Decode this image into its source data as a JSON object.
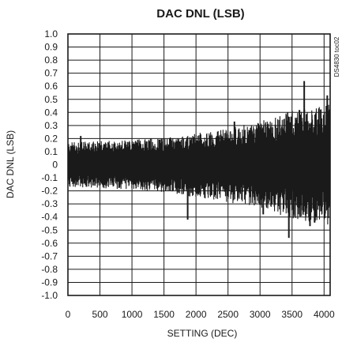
{
  "chart_data": {
    "type": "line",
    "title": "DAC DNL (LSB)",
    "xlabel": "SETTING (DEC)",
    "ylabel": "DAC DNL (LSB)",
    "watermark": "DS4830 toc02",
    "xlim": [
      0,
      4095
    ],
    "ylim": [
      -1.0,
      1.0
    ],
    "x_ticks": [
      0,
      500,
      1000,
      1500,
      2000,
      2500,
      3000,
      3500,
      4000
    ],
    "x_tick_labels": [
      "0",
      "500",
      "1000",
      "1500",
      "2000",
      "2500",
      "3000",
      "3500",
      "4000"
    ],
    "y_ticks": [
      1.0,
      0.9,
      0.8,
      0.7,
      0.6,
      0.5,
      0.4,
      0.3,
      0.2,
      0.1,
      0,
      -0.1,
      -0.2,
      -0.3,
      -0.4,
      -0.5,
      -0.6,
      -0.7,
      -0.8,
      -0.9,
      -1.0
    ],
    "y_tick_labels": [
      "1.0",
      "0.9",
      "0.8",
      "0.7",
      "0.6",
      "0.5",
      "0.4",
      "0.3",
      "0.2",
      "0.1",
      "0",
      "-0.1",
      "-0.2",
      "-0.3",
      "-0.4",
      "-0.5",
      "-0.6",
      "-0.7",
      "-0.8",
      "-0.9",
      "-1.0"
    ],
    "grid": true,
    "series": [
      {
        "color": "#1a1a1a",
        "envelope_x": [
          0,
          500,
          1000,
          1500,
          2000,
          2500,
          3000,
          3500,
          4095
        ],
        "upper": [
          0.17,
          0.18,
          0.19,
          0.21,
          0.24,
          0.28,
          0.33,
          0.42,
          0.46
        ],
        "lower": [
          -0.17,
          -0.18,
          -0.19,
          -0.21,
          -0.25,
          -0.29,
          -0.33,
          -0.42,
          -0.46
        ],
        "peaks": [
          {
            "x": 200,
            "y": 0.22
          },
          {
            "x": 1870,
            "y": -0.42
          },
          {
            "x": 2600,
            "y": 0.33
          },
          {
            "x": 3050,
            "y": -0.38
          },
          {
            "x": 3450,
            "y": -0.56
          },
          {
            "x": 3690,
            "y": 0.64
          },
          {
            "x": 3780,
            "y": -0.47
          },
          {
            "x": 4050,
            "y": 0.53
          }
        ]
      }
    ]
  }
}
